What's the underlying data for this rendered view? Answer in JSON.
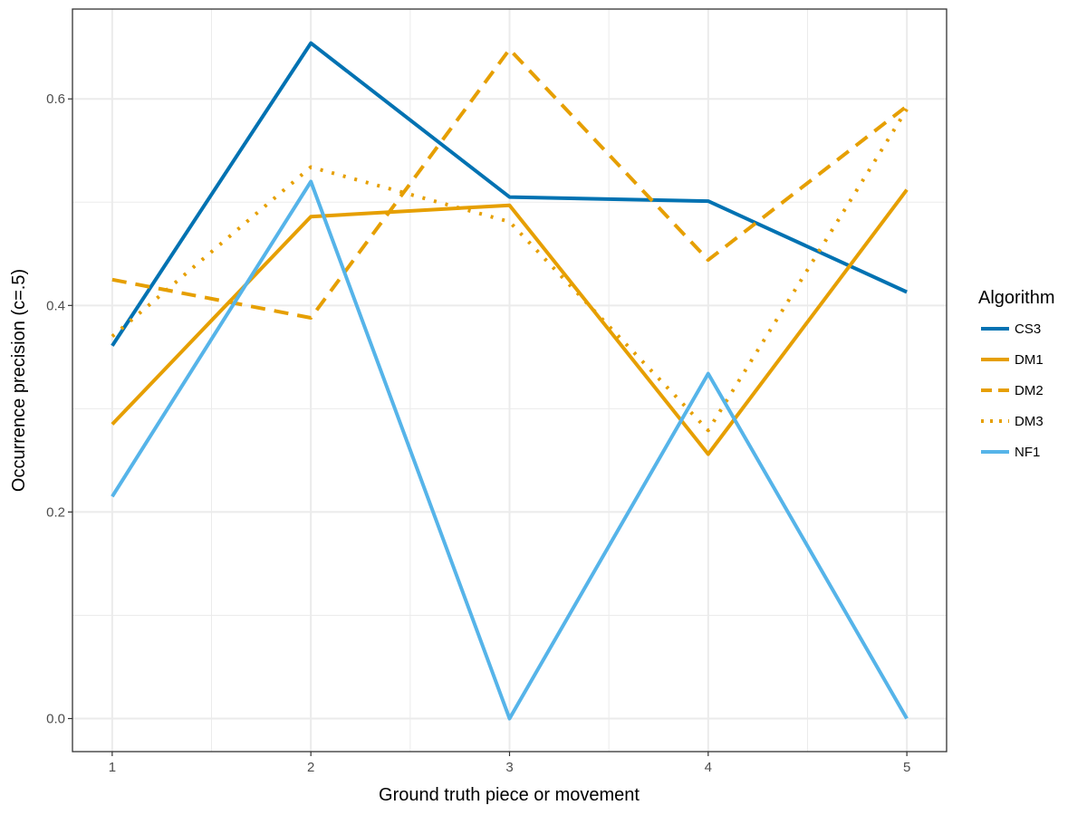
{
  "chart_data": {
    "type": "line",
    "title": "",
    "xlabel": "Ground truth piece or movement",
    "ylabel": "Occurrence precision (c=.5)",
    "x": [
      1,
      2,
      3,
      4,
      5
    ],
    "x_ticks": [
      "1",
      "2",
      "3",
      "4",
      "5"
    ],
    "y_ticks": [
      "0.0",
      "0.2",
      "0.4",
      "0.6"
    ],
    "xlim": [
      0.8,
      5.2
    ],
    "ylim": [
      -0.032,
      0.687
    ],
    "grid": true,
    "legend_title": "Algorithm",
    "legend_position": "right",
    "series": [
      {
        "name": "CS3",
        "values": [
          0.361,
          0.654,
          0.505,
          0.501,
          0.413
        ],
        "color": "#0072B2",
        "dash": "solid"
      },
      {
        "name": "DM1",
        "values": [
          0.285,
          0.486,
          0.497,
          0.256,
          0.512
        ],
        "color": "#E69F00",
        "dash": "solid"
      },
      {
        "name": "DM2",
        "values": [
          0.425,
          0.388,
          0.648,
          0.444,
          0.593
        ],
        "color": "#E69F00",
        "dash": "dashed"
      },
      {
        "name": "DM3",
        "values": [
          0.37,
          0.534,
          0.481,
          0.279,
          0.59
        ],
        "color": "#E69F00",
        "dash": "dotted"
      },
      {
        "name": "NF1",
        "values": [
          0.215,
          0.52,
          0.0,
          0.334,
          0.0
        ],
        "color": "#56B4E9",
        "dash": "solid"
      }
    ]
  }
}
